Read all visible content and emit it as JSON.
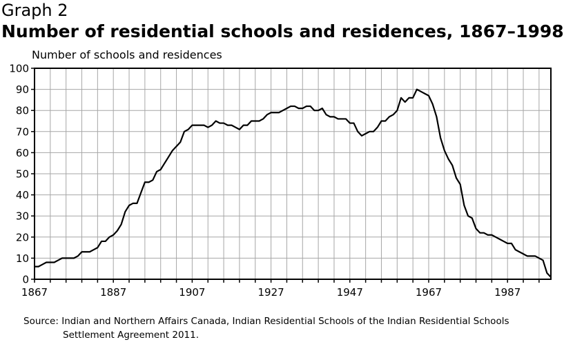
{
  "header": {
    "graph_label": "Graph 2",
    "title": "Number of residential schools and residences, 1867–1998"
  },
  "footer": {
    "source_line1": "Source: Indian and Northern Affairs Canada, Indian Residential Schools of the Indian Residential Schools",
    "source_line2": "Settlement Agreement 2011."
  },
  "chart_data": {
    "type": "line",
    "title": "Number of residential schools and residences, 1867–1998",
    "ylabel": "Number of schools and residences",
    "xlabel": "",
    "xlim": [
      1867,
      1998
    ],
    "ylim": [
      0,
      100
    ],
    "x_ticks": [
      1867,
      1887,
      1907,
      1927,
      1947,
      1967,
      1987
    ],
    "y_ticks": [
      0,
      10,
      20,
      30,
      40,
      50,
      60,
      70,
      80,
      90,
      100
    ],
    "grid": true,
    "series": [
      {
        "color": "#000000",
        "points": [
          [
            1867,
            6
          ],
          [
            1868,
            6
          ],
          [
            1869,
            7
          ],
          [
            1870,
            8
          ],
          [
            1871,
            8
          ],
          [
            1872,
            8
          ],
          [
            1873,
            9
          ],
          [
            1874,
            10
          ],
          [
            1875,
            10
          ],
          [
            1876,
            10
          ],
          [
            1877,
            10
          ],
          [
            1878,
            11
          ],
          [
            1879,
            13
          ],
          [
            1880,
            13
          ],
          [
            1881,
            13
          ],
          [
            1882,
            14
          ],
          [
            1883,
            15
          ],
          [
            1884,
            18
          ],
          [
            1885,
            18
          ],
          [
            1886,
            20
          ],
          [
            1887,
            21
          ],
          [
            1888,
            23
          ],
          [
            1889,
            26
          ],
          [
            1890,
            32
          ],
          [
            1891,
            35
          ],
          [
            1892,
            36
          ],
          [
            1893,
            36
          ],
          [
            1894,
            41
          ],
          [
            1895,
            46
          ],
          [
            1896,
            46
          ],
          [
            1897,
            47
          ],
          [
            1898,
            51
          ],
          [
            1899,
            52
          ],
          [
            1900,
            55
          ],
          [
            1901,
            58
          ],
          [
            1902,
            61
          ],
          [
            1903,
            63
          ],
          [
            1904,
            65
          ],
          [
            1905,
            70
          ],
          [
            1906,
            71
          ],
          [
            1907,
            73
          ],
          [
            1908,
            73
          ],
          [
            1909,
            73
          ],
          [
            1910,
            73
          ],
          [
            1911,
            72
          ],
          [
            1912,
            73
          ],
          [
            1913,
            75
          ],
          [
            1914,
            74
          ],
          [
            1915,
            74
          ],
          [
            1916,
            73
          ],
          [
            1917,
            73
          ],
          [
            1918,
            72
          ],
          [
            1919,
            71
          ],
          [
            1920,
            73
          ],
          [
            1921,
            73
          ],
          [
            1922,
            75
          ],
          [
            1923,
            75
          ],
          [
            1924,
            75
          ],
          [
            1925,
            76
          ],
          [
            1926,
            78
          ],
          [
            1927,
            79
          ],
          [
            1928,
            79
          ],
          [
            1929,
            79
          ],
          [
            1930,
            80
          ],
          [
            1931,
            81
          ],
          [
            1932,
            82
          ],
          [
            1933,
            82
          ],
          [
            1934,
            81
          ],
          [
            1935,
            81
          ],
          [
            1936,
            82
          ],
          [
            1937,
            82
          ],
          [
            1938,
            80
          ],
          [
            1939,
            80
          ],
          [
            1940,
            81
          ],
          [
            1941,
            78
          ],
          [
            1942,
            77
          ],
          [
            1943,
            77
          ],
          [
            1944,
            76
          ],
          [
            1945,
            76
          ],
          [
            1946,
            76
          ],
          [
            1947,
            74
          ],
          [
            1948,
            74
          ],
          [
            1949,
            70
          ],
          [
            1950,
            68
          ],
          [
            1951,
            69
          ],
          [
            1952,
            70
          ],
          [
            1953,
            70
          ],
          [
            1954,
            72
          ],
          [
            1955,
            75
          ],
          [
            1956,
            75
          ],
          [
            1957,
            77
          ],
          [
            1958,
            78
          ],
          [
            1959,
            80
          ],
          [
            1960,
            86
          ],
          [
            1961,
            84
          ],
          [
            1962,
            86
          ],
          [
            1963,
            86
          ],
          [
            1964,
            90
          ],
          [
            1965,
            89
          ],
          [
            1966,
            88
          ],
          [
            1967,
            87
          ],
          [
            1968,
            83
          ],
          [
            1969,
            77
          ],
          [
            1970,
            67
          ],
          [
            1971,
            61
          ],
          [
            1972,
            57
          ],
          [
            1973,
            54
          ],
          [
            1974,
            48
          ],
          [
            1975,
            45
          ],
          [
            1976,
            35
          ],
          [
            1977,
            30
          ],
          [
            1978,
            29
          ],
          [
            1979,
            24
          ],
          [
            1980,
            22
          ],
          [
            1981,
            22
          ],
          [
            1982,
            21
          ],
          [
            1983,
            21
          ],
          [
            1984,
            20
          ],
          [
            1985,
            19
          ],
          [
            1986,
            18
          ],
          [
            1987,
            17
          ],
          [
            1988,
            17
          ],
          [
            1989,
            14
          ],
          [
            1990,
            13
          ],
          [
            1991,
            12
          ],
          [
            1992,
            11
          ],
          [
            1993,
            11
          ],
          [
            1994,
            11
          ],
          [
            1995,
            10
          ],
          [
            1996,
            9
          ],
          [
            1997,
            3
          ],
          [
            1998,
            1
          ]
        ]
      }
    ]
  }
}
